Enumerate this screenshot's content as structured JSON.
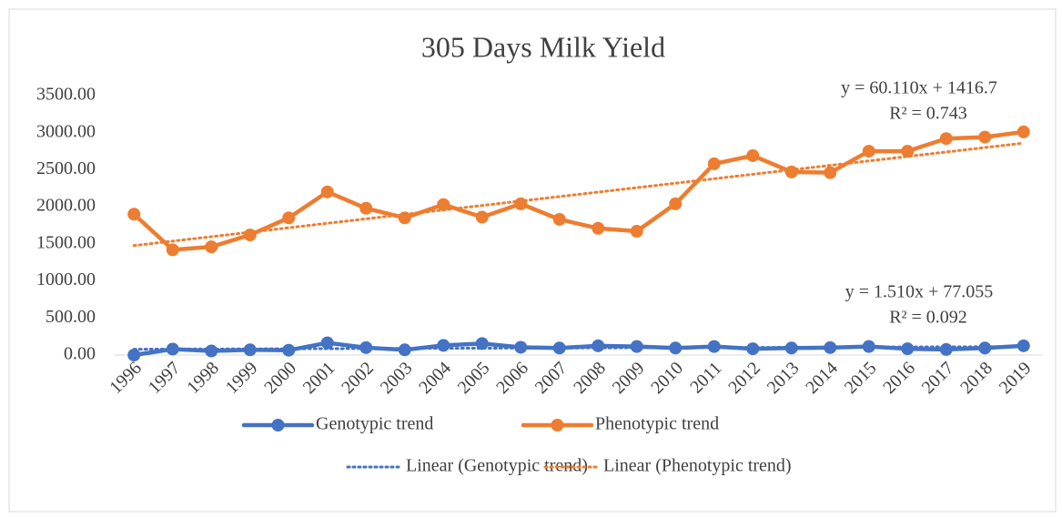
{
  "chart_data": {
    "type": "line",
    "title": "305 Days Milk Yield",
    "categories": [
      "1996",
      "1997",
      "1998",
      "1999",
      "2000",
      "2001",
      "2002",
      "2003",
      "2004",
      "2005",
      "2006",
      "2007",
      "2008",
      "2009",
      "2010",
      "2011",
      "2012",
      "2013",
      "2014",
      "2015",
      "2016",
      "2017",
      "2018",
      "2019"
    ],
    "series": [
      {
        "name": "Genotypic trend",
        "color": "#4472c4",
        "style": "solid",
        "values": [
          0,
          80,
          55,
          70,
          65,
          165,
          100,
          70,
          130,
          155,
          105,
          95,
          125,
          115,
          95,
          115,
          85,
          95,
          100,
          115,
          85,
          75,
          95,
          125
        ]
      },
      {
        "name": "Phenotypic trend",
        "color": "#ed7d31",
        "style": "solid",
        "values": [
          1900,
          1420,
          1460,
          1620,
          1850,
          2200,
          1980,
          1850,
          2030,
          1860,
          2040,
          1830,
          1710,
          1670,
          2040,
          2580,
          2690,
          2470,
          2460,
          2750,
          2750,
          2920,
          2940,
          3010
        ]
      },
      {
        "name": "Linear (Genotypic trend)",
        "color": "#4472c4",
        "style": "dotted",
        "values": [
          78.6,
          80.1,
          81.6,
          83.1,
          84.6,
          86.1,
          87.6,
          89.1,
          90.6,
          92.2,
          93.7,
          95.2,
          96.7,
          98.2,
          99.7,
          101.2,
          102.7,
          104.2,
          105.7,
          107.3,
          108.8,
          110.3,
          111.8,
          113.3
        ]
      },
      {
        "name": "Linear (Phenotypic trend)",
        "color": "#ed7d31",
        "style": "dotted",
        "values": [
          1476.8,
          1536.9,
          1597.0,
          1657.1,
          1717.2,
          1777.4,
          1837.5,
          1897.6,
          1957.7,
          2017.8,
          2077.9,
          2138.0,
          2198.1,
          2258.2,
          2318.3,
          2378.5,
          2438.6,
          2498.7,
          2558.8,
          2618.9,
          2679.0,
          2739.1,
          2799.2,
          2859.3
        ]
      }
    ],
    "ylim": [
      0,
      3500
    ],
    "yticks": [
      {
        "value": 0,
        "label": "0.00"
      },
      {
        "value": 500,
        "label": "500.00"
      },
      {
        "value": 1000,
        "label": "1000.00"
      },
      {
        "value": 1500,
        "label": "1500.00"
      },
      {
        "value": 2000,
        "label": "2000.00"
      },
      {
        "value": 2500,
        "label": "2500.00"
      },
      {
        "value": 3000,
        "label": "3000.00"
      },
      {
        "value": 3500,
        "label": "3500.00"
      }
    ],
    "grid": false,
    "legend": "bottom",
    "annotations": [
      "y = 60.110x + 1416.7",
      "R² = 0.743",
      "y = 1.510x + 77.055",
      "R² = 0.092"
    ]
  }
}
